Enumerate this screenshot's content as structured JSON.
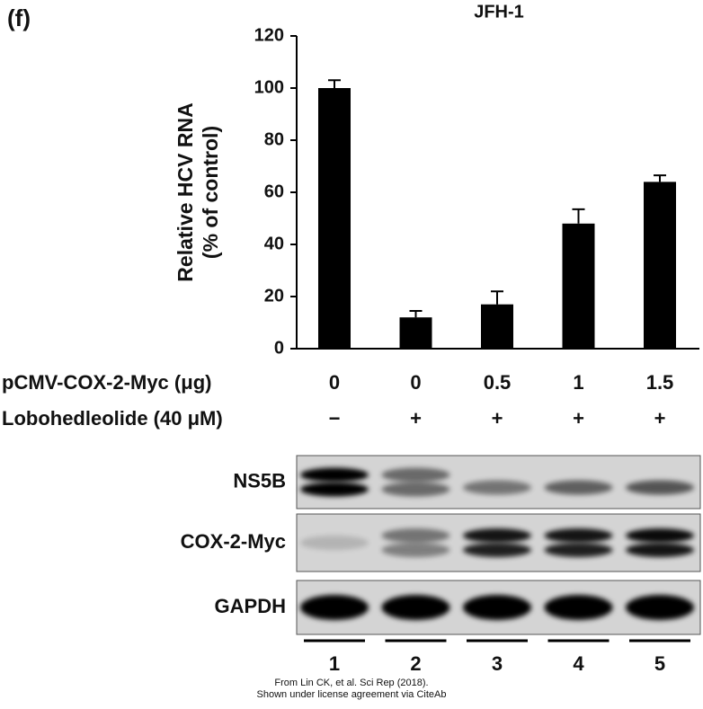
{
  "chart_data": {
    "type": "bar",
    "panel_label": "(f)",
    "title": "JFH-1",
    "ylabel": [
      "Relative HCV RNA",
      "(% of control)"
    ],
    "categories": [
      "1",
      "2",
      "3",
      "4",
      "5"
    ],
    "values": [
      100,
      12,
      17,
      48,
      64
    ],
    "errors": [
      3,
      2.5,
      5,
      5.5,
      2.5
    ],
    "color": "#000000",
    "ylim": [
      0,
      120
    ],
    "yticks": [
      0,
      20,
      40,
      60,
      80,
      100,
      120
    ],
    "treatments": [
      {
        "name": "pCMV-COX-2-Myc (μg)",
        "values": [
          "0",
          "0",
          "0.5",
          "1",
          "1.5"
        ]
      },
      {
        "name": "Lobohedleolide (40 μM)",
        "values": [
          "−",
          "+",
          "+",
          "+",
          "+"
        ]
      }
    ],
    "blot_rows": [
      "NS5B",
      "COX-2-Myc",
      "GAPDH"
    ],
    "credit": [
      "From Lin CK, et al. Sci Rep (2018).",
      "Shown under license agreement via CiteAb"
    ]
  }
}
